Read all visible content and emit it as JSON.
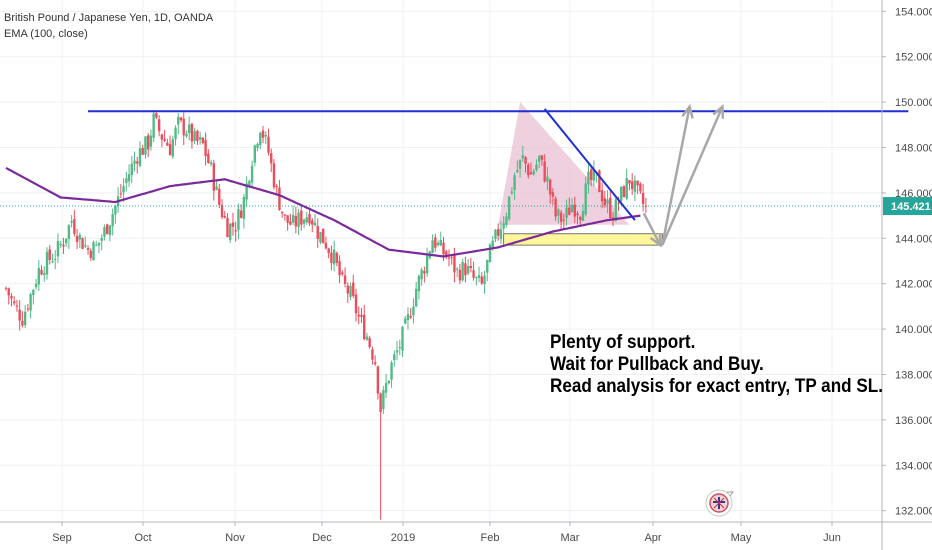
{
  "legend": {
    "symbol": "British Pound / Japanese Yen, 1D, OANDA",
    "indicator": "EMA (100, close)"
  },
  "annotation": {
    "lines": [
      "Plenty of support.",
      "Wait for Pullback and Buy.",
      "Read analysis for exact entry, TP and SL."
    ]
  },
  "colors": {
    "up": "#53b987",
    "down": "#eb4d5c",
    "ema": "#7b2a9a",
    "trendline": "#1e2fd6",
    "triangle_fill": "#e8bcd0",
    "support_zone": "#fff59a",
    "arrows": "#a8a8a8",
    "price_label_bg": "#26a69a"
  },
  "chart_data": {
    "type": "candlestick",
    "title": "British Pound / Japanese Yen, 1D, OANDA",
    "ylim": [
      131.5,
      154.5
    ],
    "y_ticks": [
      "154.000",
      "152.000",
      "150.000",
      "148.000",
      "146.000",
      "144.000",
      "142.000",
      "140.000",
      "138.000",
      "136.000",
      "134.000",
      "132.000"
    ],
    "x_ticks": [
      "Sep",
      "Oct",
      "Nov",
      "Dec",
      "2019",
      "Feb",
      "Mar",
      "Apr",
      "May",
      "Jun"
    ],
    "last_price": "145.421",
    "last_price_value": 145.421,
    "price_path": [
      [
        0,
        141.8
      ],
      [
        3,
        141.0
      ],
      [
        6,
        140.5
      ],
      [
        9,
        141.5
      ],
      [
        12,
        142.6
      ],
      [
        15,
        143.0
      ],
      [
        18,
        143.3
      ],
      [
        21,
        143.9
      ],
      [
        24,
        144.8
      ],
      [
        27,
        144.0
      ],
      [
        30,
        143.5
      ],
      [
        33,
        143.6
      ],
      [
        36,
        144.3
      ],
      [
        40,
        145.4
      ],
      [
        44,
        146.6
      ],
      [
        48,
        147.7
      ],
      [
        52,
        148.2
      ],
      [
        54,
        149.2
      ],
      [
        57,
        148.5
      ],
      [
        60,
        148.0
      ],
      [
        63,
        149.0
      ],
      [
        66,
        148.8
      ],
      [
        69,
        148.3
      ],
      [
        72,
        148.1
      ],
      [
        75,
        147.0
      ],
      [
        78,
        145.5
      ],
      [
        81,
        144.5
      ],
      [
        84,
        144.6
      ],
      [
        87,
        145.7
      ],
      [
        90,
        147.6
      ],
      [
        93,
        149.0
      ],
      [
        96,
        147.8
      ],
      [
        99,
        146.0
      ],
      [
        102,
        144.8
      ],
      [
        105,
        144.6
      ],
      [
        108,
        144.9
      ],
      [
        111,
        145.1
      ],
      [
        114,
        144.3
      ],
      [
        117,
        143.8
      ],
      [
        120,
        143.1
      ],
      [
        123,
        142.0
      ],
      [
        126,
        141.5
      ],
      [
        129,
        140.5
      ],
      [
        132,
        139.7
      ],
      [
        135,
        138.6
      ],
      [
        137,
        136.5
      ],
      [
        139,
        137.5
      ],
      [
        141,
        138.4
      ],
      [
        144,
        139.3
      ],
      [
        147,
        140.4
      ],
      [
        150,
        141.8
      ],
      [
        153,
        142.8
      ],
      [
        156,
        144.0
      ],
      [
        159,
        143.5
      ],
      [
        162,
        143.1
      ],
      [
        165,
        142.5
      ],
      [
        168,
        142.7
      ],
      [
        171,
        142.2
      ],
      [
        174,
        141.9
      ],
      [
        177,
        143.3
      ],
      [
        180,
        144.3
      ],
      [
        183,
        145.2
      ],
      [
        186,
        146.8
      ],
      [
        189,
        147.5
      ],
      [
        192,
        146.8
      ],
      [
        195,
        147.5
      ],
      [
        198,
        146.5
      ],
      [
        201,
        145.0
      ],
      [
        204,
        144.8
      ],
      [
        207,
        145.5
      ],
      [
        210,
        145.2
      ],
      [
        213,
        146.5
      ],
      [
        216,
        146.6
      ],
      [
        219,
        145.6
      ],
      [
        222,
        145.1
      ],
      [
        225,
        145.9
      ],
      [
        228,
        146.6
      ],
      [
        231,
        145.9
      ],
      [
        234,
        145.3
      ]
    ],
    "ema_path": [
      [
        0,
        147.1
      ],
      [
        20,
        145.8
      ],
      [
        40,
        145.6
      ],
      [
        60,
        146.3
      ],
      [
        80,
        146.6
      ],
      [
        100,
        145.9
      ],
      [
        120,
        144.8
      ],
      [
        140,
        143.5
      ],
      [
        160,
        143.2
      ],
      [
        180,
        143.6
      ],
      [
        200,
        144.3
      ],
      [
        220,
        144.8
      ],
      [
        232,
        145.0
      ]
    ],
    "resistance": {
      "level": 149.6,
      "from_index": 30,
      "to_index": 330
    },
    "descending_trendline": {
      "from": [
        197,
        149.7
      ],
      "to": [
        230,
        144.8
      ]
    },
    "triangle": [
      [
        188,
        150.0
      ],
      [
        228,
        144.6
      ],
      [
        180,
        144.6
      ]
    ],
    "support_zone": {
      "from_index": 182,
      "to_index": 240,
      "low": 143.7,
      "high": 144.2
    },
    "projection_arrows": [
      {
        "from": [
          240,
          143.7
        ],
        "to": [
          250,
          149.8
        ]
      },
      {
        "from": [
          240,
          143.7
        ],
        "to": [
          262,
          149.8
        ]
      }
    ],
    "index_range": [
      0,
      305
    ]
  }
}
